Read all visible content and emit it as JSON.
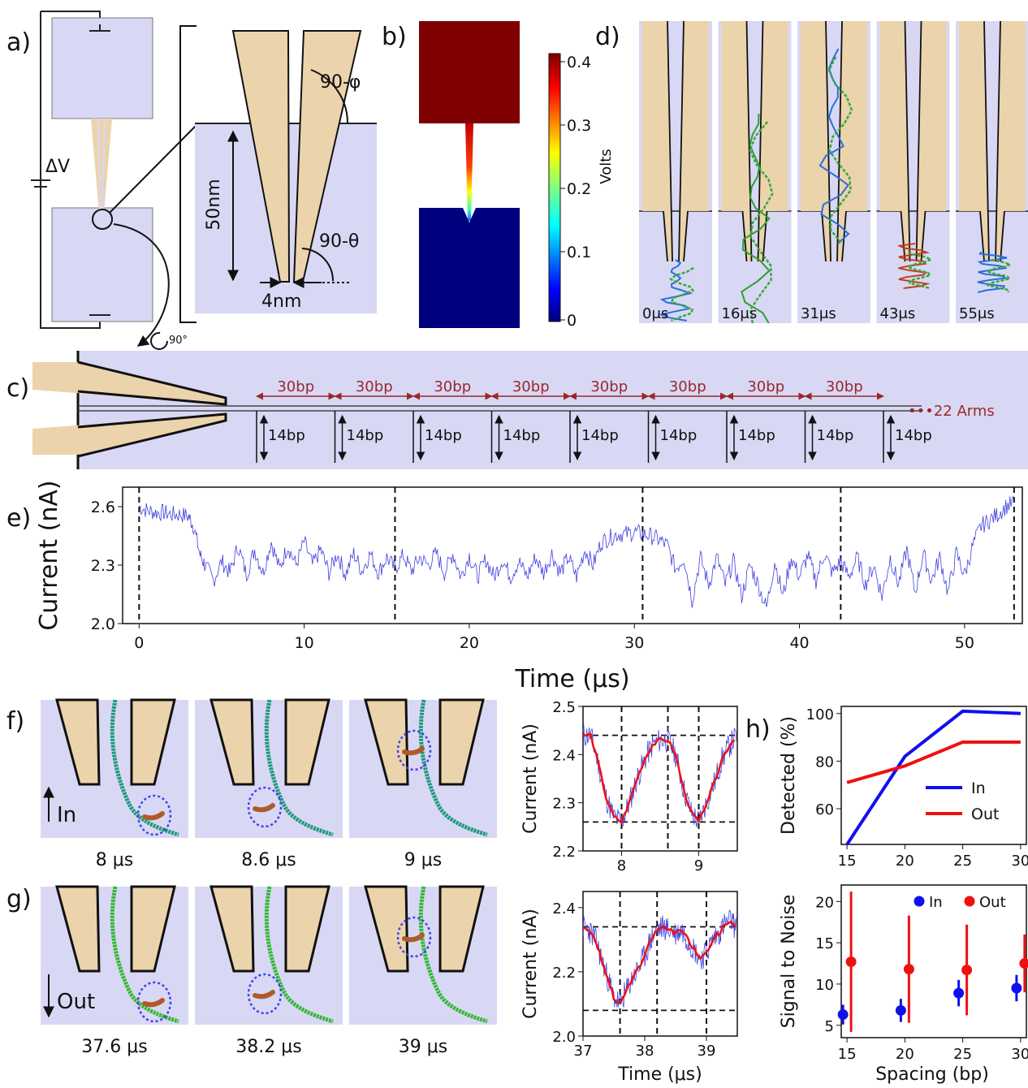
{
  "panel_labels": {
    "a": "a)",
    "b": "b)",
    "c": "c)",
    "d": "d)",
    "e": "e)",
    "f": "f)",
    "g": "g)",
    "h": "h)"
  },
  "panel_a": {
    "voltage": "ΔV",
    "length": "50nm",
    "tip_width": "4nm",
    "angle_top": "90-φ",
    "angle_bottom": "90-θ",
    "rotation": "90°"
  },
  "panel_b": {
    "colorbar_label": "Volts",
    "ticks": [
      "0.4",
      "0.3",
      "0.2",
      "0.1",
      "0"
    ]
  },
  "panel_c": {
    "arm_spacing": [
      "30bp",
      "30bp",
      "30bp",
      "30bp",
      "30bp",
      "30bp",
      "30bp",
      "30bp"
    ],
    "arm_length": [
      "14bp",
      "14bp",
      "14bp",
      "14bp",
      "14bp",
      "14bp",
      "14bp",
      "14bp",
      "14bp"
    ],
    "arms_note": "•••22 Arms"
  },
  "panel_d": {
    "times": [
      "0μs",
      "16μs",
      "31μs",
      "43μs",
      "55μs"
    ]
  },
  "panel_f": {
    "direction": "In",
    "times": [
      "8 μs",
      "8.6 μs",
      "9 μs"
    ]
  },
  "panel_g": {
    "direction": "Out",
    "times": [
      "37.6 μs",
      "38.2 μs",
      "39 μs"
    ]
  },
  "colors": {
    "pore": "#ebd3ac",
    "solution": "#d8d8f5",
    "trace": "#4040e0",
    "fit": "#ee1111",
    "in": "#1010ee",
    "out": "#ee1111"
  },
  "chart_data": [
    {
      "id": "e",
      "type": "line",
      "xlabel": "Time (μs)",
      "ylabel": "Current (nA)",
      "xlim": [
        -1,
        53.5
      ],
      "ylim": [
        2.0,
        2.7
      ],
      "xticks": [
        "0",
        "10",
        "20",
        "30",
        "40",
        "50"
      ],
      "yticks": [
        "2.0",
        "2.3",
        "2.6"
      ],
      "vlines": [
        0,
        15.5,
        30.5,
        42.5,
        53
      ],
      "series": [
        {
          "x": [
            0,
            0.5,
            1,
            1.5,
            2,
            2.5,
            3,
            3.3,
            3.7,
            4,
            4.5,
            5,
            5.5,
            6,
            6.5,
            7,
            7.5,
            8,
            8.5,
            9,
            9.5,
            10,
            10.5,
            11,
            11.5,
            12,
            12.5,
            13,
            13.5,
            14,
            14.5,
            15,
            15.5,
            16,
            16.5,
            17,
            17.5,
            18,
            18.5,
            19,
            19.5,
            20,
            20.5,
            21,
            21.5,
            22,
            22.5,
            23,
            23.5,
            24,
            24.5,
            25,
            25.5,
            26,
            26.5,
            27,
            27.5,
            28,
            28.5,
            29,
            29.5,
            30,
            30.5,
            31,
            31.5,
            32,
            32.5,
            33,
            33.5,
            34,
            34.5,
            35,
            35.5,
            36,
            36.5,
            37,
            37.5,
            38,
            38.5,
            39,
            39.5,
            40,
            40.5,
            41,
            41.5,
            42,
            42.5,
            43,
            43.5,
            44,
            44.5,
            45,
            45.5,
            46,
            46.5,
            47,
            47.5,
            48,
            48.5,
            49,
            49.5,
            50,
            50.5,
            51,
            51.5,
            52,
            52.5,
            53
          ],
          "y": [
            2.6,
            2.58,
            2.57,
            2.57,
            2.56,
            2.56,
            2.55,
            2.5,
            2.35,
            2.3,
            2.22,
            2.32,
            2.26,
            2.4,
            2.25,
            2.38,
            2.26,
            2.42,
            2.28,
            2.4,
            2.3,
            2.42,
            2.3,
            2.38,
            2.26,
            2.36,
            2.25,
            2.36,
            2.27,
            2.36,
            2.26,
            2.34,
            2.28,
            2.35,
            2.27,
            2.34,
            2.3,
            2.36,
            2.26,
            2.36,
            2.24,
            2.35,
            2.24,
            2.33,
            2.24,
            2.33,
            2.24,
            2.32,
            2.24,
            2.34,
            2.26,
            2.36,
            2.26,
            2.34,
            2.24,
            2.38,
            2.3,
            2.42,
            2.44,
            2.46,
            2.46,
            2.47,
            2.46,
            2.45,
            2.43,
            2.4,
            2.28,
            2.34,
            2.12,
            2.34,
            2.2,
            2.34,
            2.2,
            2.32,
            2.14,
            2.3,
            2.2,
            2.08,
            2.32,
            2.14,
            2.34,
            2.24,
            2.35,
            2.22,
            2.36,
            2.26,
            2.32,
            2.24,
            2.34,
            2.2,
            2.3,
            2.14,
            2.34,
            2.2,
            2.38,
            2.16,
            2.36,
            2.22,
            2.34,
            2.16,
            2.36,
            2.25,
            2.4,
            2.5,
            2.53,
            2.56,
            2.6,
            2.62
          ]
        }
      ]
    },
    {
      "id": "f",
      "type": "line",
      "xlabel": "",
      "ylabel": "Current (nA)",
      "xlim": [
        7.5,
        9.5
      ],
      "ylim": [
        2.2,
        2.5
      ],
      "xticks": [
        "8",
        "9"
      ],
      "yticks": [
        "2.2",
        "2.3",
        "2.4",
        "2.5"
      ],
      "vlines": [
        8,
        8.6,
        9
      ],
      "hlines": [
        2.44,
        2.26
      ],
      "series": [
        {
          "name": "raw",
          "x": [
            7.5,
            7.6,
            7.7,
            7.8,
            7.9,
            8,
            8.1,
            8.2,
            8.3,
            8.4,
            8.5,
            8.6,
            8.7,
            8.8,
            8.9,
            9,
            9.1,
            9.2,
            9.3,
            9.4,
            9.5
          ],
          "y": [
            2.44,
            2.44,
            2.38,
            2.31,
            2.27,
            2.26,
            2.3,
            2.35,
            2.39,
            2.42,
            2.43,
            2.43,
            2.4,
            2.33,
            2.28,
            2.26,
            2.3,
            2.34,
            2.39,
            2.42,
            2.44
          ]
        }
      ]
    },
    {
      "id": "g",
      "type": "line",
      "xlabel": "Time (μs)",
      "ylabel": "Current (nA)",
      "xlim": [
        37,
        39.5
      ],
      "ylim": [
        2.0,
        2.45
      ],
      "xticks": [
        "37",
        "38",
        "39"
      ],
      "yticks": [
        "2.0",
        "2.2",
        "2.4"
      ],
      "vlines": [
        37.6,
        38.2,
        39
      ],
      "hlines": [
        2.34,
        2.08
      ],
      "series": [
        {
          "name": "raw",
          "x": [
            37,
            37.1,
            37.2,
            37.3,
            37.4,
            37.5,
            37.6,
            37.7,
            37.8,
            37.9,
            38,
            38.1,
            38.2,
            38.3,
            38.4,
            38.5,
            38.6,
            38.7,
            38.8,
            38.9,
            39,
            39.1,
            39.2,
            39.3,
            39.4,
            39.5
          ],
          "y": [
            2.34,
            2.33,
            2.3,
            2.24,
            2.18,
            2.12,
            2.1,
            2.14,
            2.18,
            2.21,
            2.25,
            2.3,
            2.33,
            2.34,
            2.33,
            2.32,
            2.33,
            2.3,
            2.27,
            2.24,
            2.26,
            2.3,
            2.32,
            2.35,
            2.36,
            2.33
          ]
        }
      ]
    },
    {
      "id": "h-top",
      "type": "line",
      "xlabel": "",
      "ylabel": "Detected (%)",
      "xlim": [
        14.5,
        30.5
      ],
      "ylim": [
        45,
        103
      ],
      "xticks": [
        "15",
        "20",
        "25",
        "30"
      ],
      "yticks": [
        "60",
        "80",
        "100"
      ],
      "legend": "bottom-right",
      "series": [
        {
          "name": "In",
          "x": [
            15,
            20,
            25,
            30
          ],
          "y": [
            45,
            82,
            101,
            100
          ]
        },
        {
          "name": "Out",
          "x": [
            15,
            20,
            25,
            30
          ],
          "y": [
            71,
            78,
            88,
            88
          ]
        }
      ]
    },
    {
      "id": "h-bottom",
      "type": "scatter",
      "xlabel": "Spacing (bp)",
      "ylabel": "Signal to Noise",
      "xlim": [
        14.5,
        30.5
      ],
      "ylim": [
        3.5,
        22
      ],
      "xticks": [
        "15",
        "20",
        "25",
        "30"
      ],
      "yticks": [
        "5",
        "10",
        "15",
        "20"
      ],
      "legend": "top-right",
      "series": [
        {
          "name": "In",
          "x": [
            15,
            20,
            25,
            30
          ],
          "y": [
            6.3,
            6.8,
            8.9,
            9.5
          ],
          "err": [
            1.2,
            1.4,
            1.6,
            1.6
          ]
        },
        {
          "name": "Out",
          "x": [
            15,
            20,
            25,
            30
          ],
          "y": [
            12.7,
            11.8,
            11.7,
            12.5
          ],
          "err": [
            8.5,
            6.5,
            5.5,
            3.5
          ]
        }
      ]
    }
  ]
}
